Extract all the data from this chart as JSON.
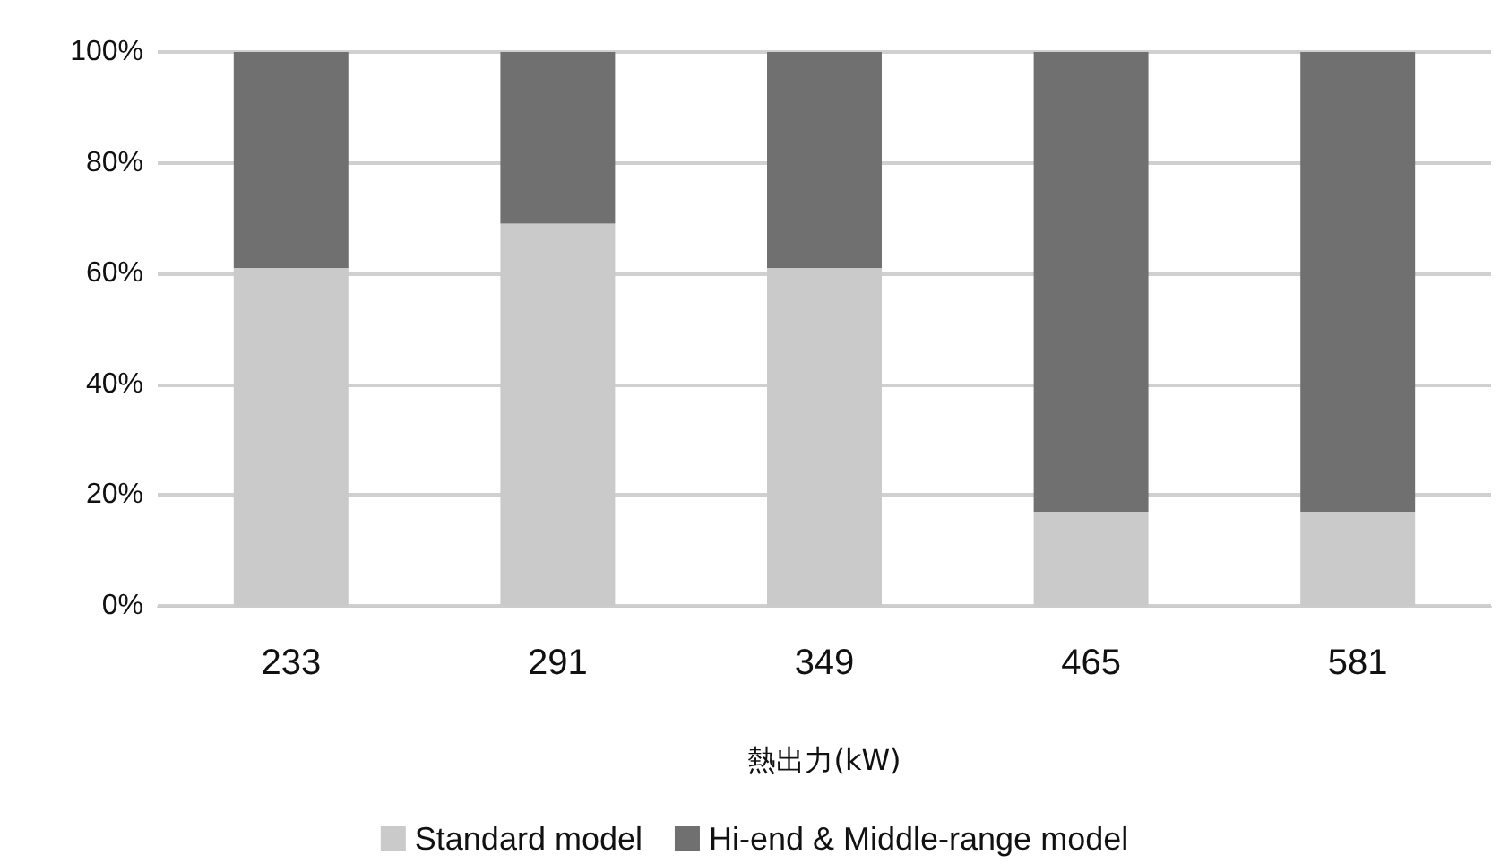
{
  "chart_data": {
    "type": "bar",
    "stacked": true,
    "xlabel": "熱出力(kW)",
    "categories": [
      "233",
      "291",
      "349",
      "465",
      "581"
    ],
    "series": [
      {
        "name": "Standard model",
        "color": "#c9cac9",
        "values": [
          61,
          69,
          61,
          17,
          17
        ]
      },
      {
        "name": "Hi-end & Middle-range model",
        "color": "#707070",
        "values": [
          39,
          31,
          39,
          83,
          83
        ]
      }
    ],
    "ylim": [
      0,
      100
    ],
    "yticks": [
      {
        "value": 0,
        "label": "0%"
      },
      {
        "value": 20,
        "label": "20%"
      },
      {
        "value": 40,
        "label": "40%"
      },
      {
        "value": 60,
        "label": "60%"
      },
      {
        "value": 80,
        "label": "80%"
      },
      {
        "value": 100,
        "label": "100%"
      }
    ],
    "grid": "y",
    "legend": "bottom"
  }
}
